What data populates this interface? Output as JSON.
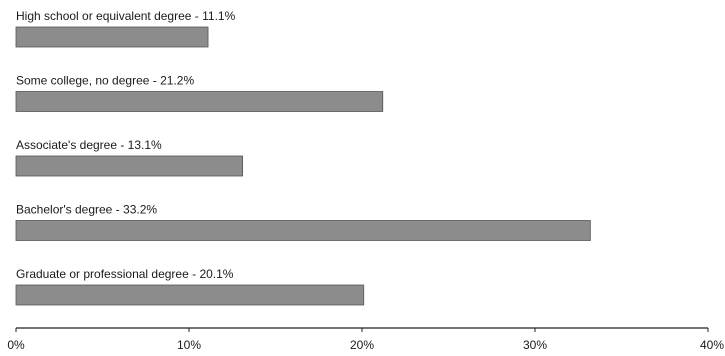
{
  "chart_data": {
    "type": "bar",
    "orientation": "horizontal",
    "title": "",
    "xlabel": "",
    "ylabel": "",
    "bars": [
      {
        "label": "High school or equivalent degree - 11.1%",
        "value": 11.1
      },
      {
        "label": "Some college, no degree - 21.2%",
        "value": 21.2
      },
      {
        "label": "Associate's degree - 13.1%",
        "value": 13.1
      },
      {
        "label": "Bachelor's degree - 33.2%",
        "value": 33.2
      },
      {
        "label": "Graduate or professional degree - 20.1%",
        "value": 20.1
      }
    ],
    "x_ticks": [
      "0%",
      "10%",
      "20%",
      "30%",
      "40%"
    ],
    "xlim": [
      0,
      40
    ],
    "grid": false,
    "bar_color": "#8c8c8c",
    "bar_edge_color": "#555555",
    "axis_color": "#222222"
  }
}
